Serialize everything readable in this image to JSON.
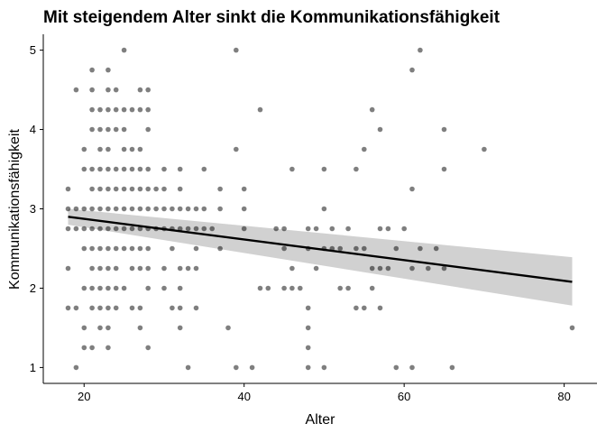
{
  "chart_data": {
    "type": "scatter",
    "title": "Mit steigendem Alter sinkt die Kommunikationsfähigkeit",
    "xlabel": "Alter",
    "ylabel": "Kommunikationsfähigkeit",
    "xlim": [
      14.9,
      84.1
    ],
    "ylim": [
      0.8,
      5.2
    ],
    "xticks": [
      "20",
      "40",
      "60",
      "80"
    ],
    "yticks": [
      "1",
      "2",
      "3",
      "4",
      "5"
    ],
    "grid": false,
    "legend": "none",
    "point_color": "#000000",
    "point_opacity": 0.5,
    "trend": {
      "method": "linear regression with confidence band",
      "x": [
        18,
        81
      ],
      "y": [
        2.9,
        2.08
      ],
      "band_lower": [
        2.8,
        1.78
      ],
      "band_upper": [
        3.0,
        2.39
      ],
      "line_color": "#000000",
      "band_color": "#cccccc"
    },
    "points": [
      [
        18,
        1.75
      ],
      [
        18,
        2.25
      ],
      [
        18,
        2.75
      ],
      [
        18,
        3
      ],
      [
        18,
        3.25
      ],
      [
        19,
        1
      ],
      [
        19,
        1.75
      ],
      [
        19,
        2.75
      ],
      [
        19,
        3
      ],
      [
        19,
        4.5
      ],
      [
        20,
        1.25
      ],
      [
        20,
        1.5
      ],
      [
        20,
        2
      ],
      [
        20,
        2.5
      ],
      [
        20,
        2.75
      ],
      [
        20,
        3
      ],
      [
        20,
        3.5
      ],
      [
        20,
        3.75
      ],
      [
        21,
        1.25
      ],
      [
        21,
        1.75
      ],
      [
        21,
        2
      ],
      [
        21,
        2.25
      ],
      [
        21,
        2.5
      ],
      [
        21,
        2.75
      ],
      [
        21,
        3
      ],
      [
        21,
        3.25
      ],
      [
        21,
        3.5
      ],
      [
        21,
        4
      ],
      [
        21,
        4.25
      ],
      [
        21,
        4.5
      ],
      [
        21,
        4.75
      ],
      [
        22,
        1.5
      ],
      [
        22,
        1.75
      ],
      [
        22,
        2
      ],
      [
        22,
        2.25
      ],
      [
        22,
        2.5
      ],
      [
        22,
        2.75
      ],
      [
        22,
        3
      ],
      [
        22,
        3.25
      ],
      [
        22,
        3.5
      ],
      [
        22,
        3.75
      ],
      [
        22,
        4
      ],
      [
        22,
        4.25
      ],
      [
        23,
        1.25
      ],
      [
        23,
        1.5
      ],
      [
        23,
        1.75
      ],
      [
        23,
        2
      ],
      [
        23,
        2.25
      ],
      [
        23,
        2.5
      ],
      [
        23,
        2.75
      ],
      [
        23,
        3
      ],
      [
        23,
        3.25
      ],
      [
        23,
        3.5
      ],
      [
        23,
        3.75
      ],
      [
        23,
        4
      ],
      [
        23,
        4.25
      ],
      [
        23,
        4.5
      ],
      [
        23,
        4.75
      ],
      [
        24,
        1.75
      ],
      [
        24,
        2
      ],
      [
        24,
        2.25
      ],
      [
        24,
        2.5
      ],
      [
        24,
        2.75
      ],
      [
        24,
        3
      ],
      [
        24,
        3.25
      ],
      [
        24,
        3.5
      ],
      [
        24,
        4
      ],
      [
        24,
        4.25
      ],
      [
        24,
        4.5
      ],
      [
        25,
        2
      ],
      [
        25,
        2.5
      ],
      [
        25,
        2.75
      ],
      [
        25,
        3
      ],
      [
        25,
        3.25
      ],
      [
        25,
        3.5
      ],
      [
        25,
        3.75
      ],
      [
        25,
        4
      ],
      [
        25,
        4.25
      ],
      [
        25,
        5
      ],
      [
        26,
        1.75
      ],
      [
        26,
        2.25
      ],
      [
        26,
        2.5
      ],
      [
        26,
        2.75
      ],
      [
        26,
        3
      ],
      [
        26,
        3.25
      ],
      [
        26,
        3.5
      ],
      [
        26,
        3.75
      ],
      [
        26,
        4.25
      ],
      [
        27,
        1.5
      ],
      [
        27,
        1.75
      ],
      [
        27,
        2.25
      ],
      [
        27,
        2.5
      ],
      [
        27,
        2.75
      ],
      [
        27,
        3
      ],
      [
        27,
        3.25
      ],
      [
        27,
        3.5
      ],
      [
        27,
        3.75
      ],
      [
        27,
        4.25
      ],
      [
        27,
        4.5
      ],
      [
        28,
        1.25
      ],
      [
        28,
        2
      ],
      [
        28,
        2.25
      ],
      [
        28,
        2.5
      ],
      [
        28,
        2.75
      ],
      [
        28,
        3
      ],
      [
        28,
        3.25
      ],
      [
        28,
        3.5
      ],
      [
        28,
        4
      ],
      [
        28,
        4.25
      ],
      [
        28,
        4.5
      ],
      [
        29,
        2.75
      ],
      [
        29,
        3
      ],
      [
        29,
        3.25
      ],
      [
        30,
        2
      ],
      [
        30,
        2.25
      ],
      [
        30,
        2.75
      ],
      [
        30,
        3
      ],
      [
        30,
        3.25
      ],
      [
        30,
        3.5
      ],
      [
        31,
        1.75
      ],
      [
        31,
        2.5
      ],
      [
        31,
        2.75
      ],
      [
        31,
        3
      ],
      [
        32,
        1.5
      ],
      [
        32,
        1.75
      ],
      [
        32,
        2
      ],
      [
        32,
        2.25
      ],
      [
        32,
        2.75
      ],
      [
        32,
        3
      ],
      [
        32,
        3.25
      ],
      [
        32,
        3.5
      ],
      [
        33,
        1
      ],
      [
        33,
        2.25
      ],
      [
        33,
        2.75
      ],
      [
        33,
        3
      ],
      [
        34,
        1.75
      ],
      [
        34,
        2.25
      ],
      [
        34,
        2.5
      ],
      [
        34,
        2.75
      ],
      [
        34,
        3
      ],
      [
        35,
        2.75
      ],
      [
        35,
        3
      ],
      [
        35,
        3.5
      ],
      [
        36,
        2.75
      ],
      [
        37,
        2.5
      ],
      [
        37,
        3
      ],
      [
        37,
        3.25
      ],
      [
        38,
        1.5
      ],
      [
        39,
        1
      ],
      [
        39,
        3.75
      ],
      [
        39,
        5
      ],
      [
        40,
        2.75
      ],
      [
        40,
        3
      ],
      [
        40,
        3.25
      ],
      [
        41,
        1
      ],
      [
        42,
        2
      ],
      [
        42,
        4.25
      ],
      [
        43,
        2
      ],
      [
        44,
        2.75
      ],
      [
        45,
        2
      ],
      [
        45,
        2.5
      ],
      [
        45,
        2.75
      ],
      [
        46,
        2
      ],
      [
        46,
        2.25
      ],
      [
        46,
        3.5
      ],
      [
        47,
        2
      ],
      [
        48,
        1
      ],
      [
        48,
        1.25
      ],
      [
        48,
        1.5
      ],
      [
        48,
        1.75
      ],
      [
        48,
        2.5
      ],
      [
        48,
        2.75
      ],
      [
        49,
        2.25
      ],
      [
        49,
        2.75
      ],
      [
        50,
        1
      ],
      [
        50,
        2.5
      ],
      [
        50,
        3
      ],
      [
        50,
        3.5
      ],
      [
        51,
        2.5
      ],
      [
        51,
        2.75
      ],
      [
        52,
        2
      ],
      [
        52,
        2.5
      ],
      [
        53,
        2
      ],
      [
        53,
        2.75
      ],
      [
        54,
        1.75
      ],
      [
        54,
        2.5
      ],
      [
        54,
        3.5
      ],
      [
        55,
        1.75
      ],
      [
        55,
        2.5
      ],
      [
        55,
        3.75
      ],
      [
        56,
        2
      ],
      [
        56,
        2.25
      ],
      [
        56,
        4.25
      ],
      [
        57,
        1.75
      ],
      [
        57,
        2.25
      ],
      [
        57,
        2.75
      ],
      [
        57,
        4
      ],
      [
        58,
        2.25
      ],
      [
        58,
        2.75
      ],
      [
        59,
        1
      ],
      [
        59,
        2.5
      ],
      [
        60,
        2.75
      ],
      [
        61,
        1
      ],
      [
        61,
        2.25
      ],
      [
        61,
        3.25
      ],
      [
        61,
        4.75
      ],
      [
        62,
        2.5
      ],
      [
        62,
        5
      ],
      [
        63,
        2.25
      ],
      [
        64,
        2.5
      ],
      [
        65,
        2.25
      ],
      [
        65,
        3.5
      ],
      [
        65,
        4
      ],
      [
        66,
        1
      ],
      [
        70,
        3.75
      ],
      [
        81,
        1.5
      ]
    ]
  }
}
